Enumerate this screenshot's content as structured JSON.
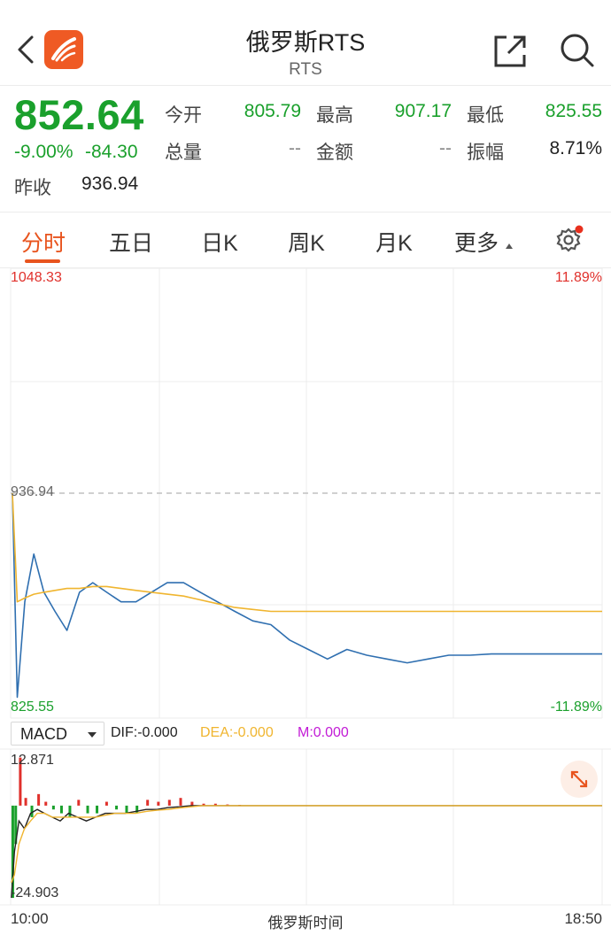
{
  "header": {
    "title": "俄罗斯RTS",
    "subtitle": "RTS",
    "back_icon": "chevron-left-icon",
    "logo_icon": "app-logo-icon",
    "share_icon": "share-icon",
    "search_icon": "search-icon"
  },
  "quote": {
    "price": "852.64",
    "change_pct": "-9.00%",
    "change_val": "-84.30",
    "prev_close_label": "昨收",
    "prev_close": "936.94",
    "stats": [
      {
        "label": "今开",
        "value": "805.79"
      },
      {
        "label": "最高",
        "value": "907.17"
      },
      {
        "label": "最低",
        "value": "825.55"
      },
      {
        "label": "总量",
        "value": "--"
      },
      {
        "label": "金额",
        "value": "--"
      },
      {
        "label": "振幅",
        "value": "8.71%"
      }
    ],
    "colors": {
      "down": "#1aa02c",
      "up": "#e0302b"
    }
  },
  "tabs": {
    "items": [
      "分时",
      "五日",
      "日K",
      "周K",
      "月K",
      "更多"
    ],
    "active": "分时",
    "settings_icon": "gear-icon"
  },
  "chart_labels": {
    "high_price": "1048.33",
    "high_pct": "11.89%",
    "ref_price": "936.94",
    "low_price": "825.55",
    "low_pct": "-11.89%",
    "macd_high": "12.871",
    "macd_low": "-24.903",
    "time_start": "10:00",
    "time_mid": "俄罗斯时间",
    "time_end": "18:50"
  },
  "macd": {
    "selector": "MACD",
    "dif": "DIF:-0.000",
    "dea": "DEA:-0.000",
    "m": "M:0.000",
    "expand_icon": "expand-arrows-icon"
  },
  "chart_data": [
    {
      "type": "line",
      "ylim": [
        825.55,
        1048.33
      ],
      "reference": 936.94,
      "time_range": [
        "10:00",
        "18:50"
      ],
      "series": [
        {
          "values": [
            936.94,
            830,
            880,
            905,
            885,
            875,
            865,
            885,
            890,
            885,
            880,
            880,
            885,
            890,
            890,
            885,
            880,
            875,
            870,
            868,
            860,
            855,
            850,
            855,
            852,
            850,
            848,
            850,
            852,
            852,
            852.64,
            852.64,
            852.64,
            852.64,
            852.64,
            852.64
          ]
        },
        {
          "values": [
            936.94,
            880,
            882,
            884,
            885,
            886,
            887,
            887,
            888,
            888,
            887,
            886,
            885,
            884,
            883,
            881,
            879,
            877,
            876,
            875,
            875,
            875,
            875,
            875,
            875,
            875,
            875,
            875,
            875,
            875,
            875,
            875,
            875,
            875,
            875,
            875
          ]
        }
      ]
    },
    {
      "type": "bar",
      "ylim": [
        -24.903,
        12.871
      ],
      "series": [
        {
          "values": [
            -24,
            -10,
            12.5,
            2,
            -3,
            3,
            1,
            -1,
            -2,
            -3,
            1.5,
            -2,
            -2,
            1,
            -1,
            -2,
            -2,
            1.5,
            1,
            1.5,
            2,
            1,
            0.5,
            0.5,
            0.3,
            0.2,
            0,
            0,
            0,
            0
          ]
        },
        {
          "values": [
            -24,
            -12,
            -4,
            -6,
            -2,
            -1,
            -2,
            -3,
            -4,
            -2,
            -3,
            -4,
            -3,
            -2,
            -2,
            -2,
            -1.5,
            -1,
            -1,
            -0.5,
            -0.3,
            0,
            0,
            0,
            0,
            0,
            0,
            0,
            0,
            0
          ]
        },
        {
          "values": [
            -20,
            -18,
            -10,
            -6,
            -4,
            -2,
            -2,
            -3,
            -3,
            -3,
            -3,
            -3,
            -3,
            -2.5,
            -2,
            -2,
            -2,
            -1.5,
            -1.2,
            -1,
            -0.6,
            -0.3,
            0,
            0,
            0,
            0,
            0,
            0,
            0,
            0
          ]
        }
      ]
    }
  ]
}
